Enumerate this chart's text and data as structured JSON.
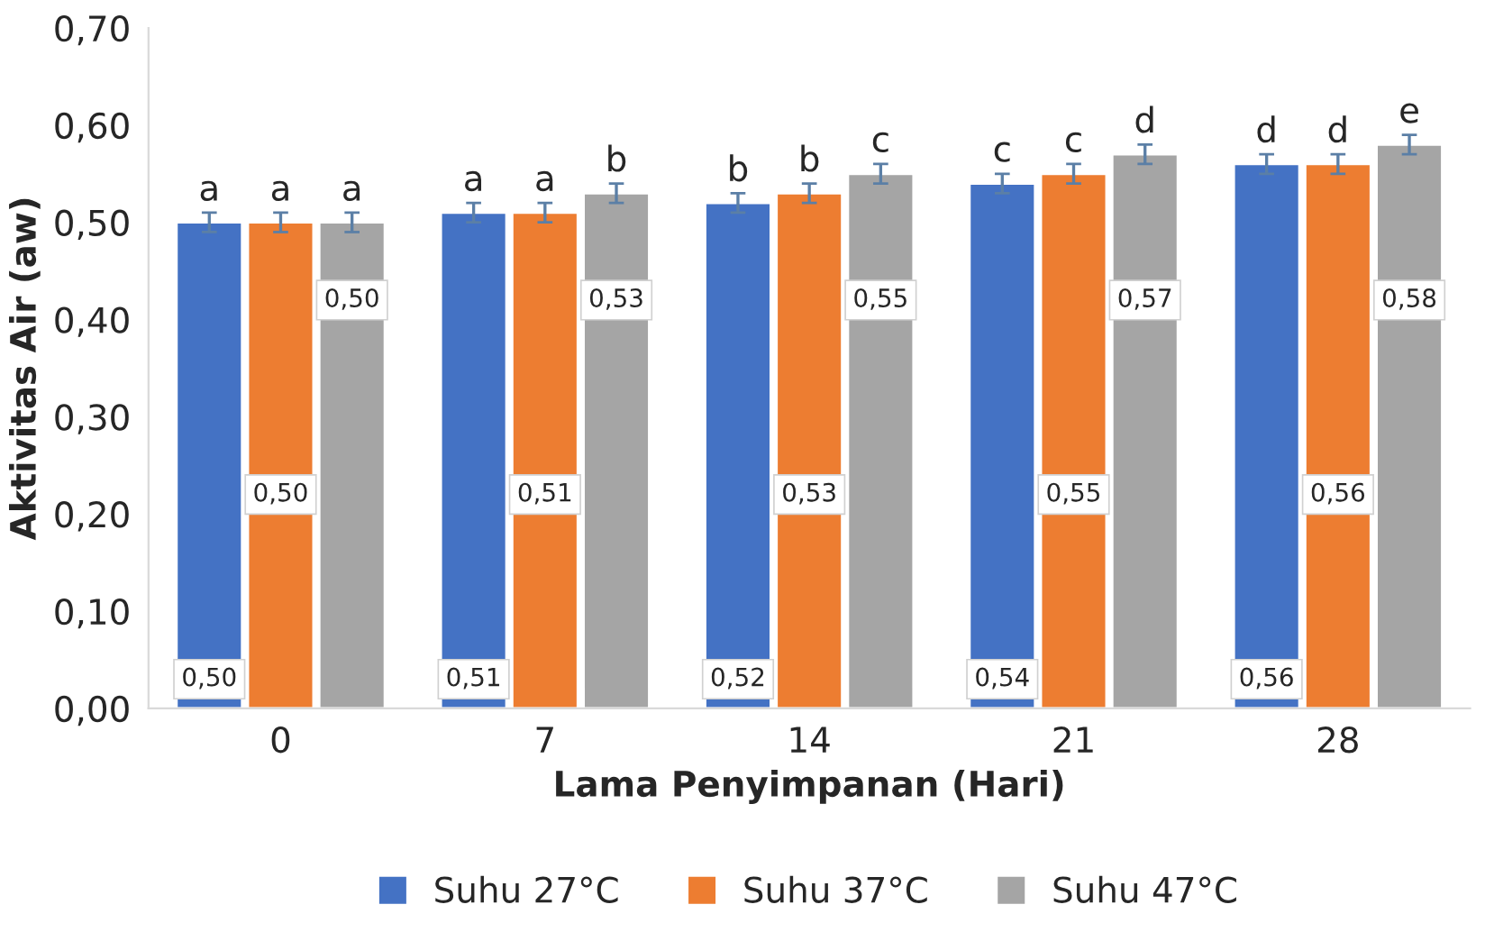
{
  "chart_data": {
    "type": "bar",
    "xlabel": "Lama Penyimpanan (Hari)",
    "ylabel": "Aktivitas Air (aw)",
    "categories": [
      "0",
      "7",
      "14",
      "21",
      "28"
    ],
    "series": [
      {
        "name": "Suhu 27°C",
        "color": "#4472c4",
        "values": [
          0.5,
          0.51,
          0.52,
          0.54,
          0.56
        ],
        "errors": [
          0.01,
          0.01,
          0.01,
          0.01,
          0.01
        ],
        "value_labels": [
          "0,50",
          "0,51",
          "0,52",
          "0,54",
          "0,56"
        ]
      },
      {
        "name": "Suhu 37°C",
        "color": "#ed7d31",
        "values": [
          0.5,
          0.51,
          0.53,
          0.55,
          0.56
        ],
        "errors": [
          0.01,
          0.01,
          0.01,
          0.01,
          0.01
        ],
        "value_labels": [
          "0,50",
          "0,51",
          "0,53",
          "0,55",
          "0,56"
        ]
      },
      {
        "name": "Suhu 47°C",
        "color": "#a5a5a5",
        "values": [
          0.5,
          0.53,
          0.55,
          0.57,
          0.58
        ],
        "errors": [
          0.01,
          0.01,
          0.01,
          0.01,
          0.01
        ],
        "value_labels": [
          "0,50",
          "0,53",
          "0,55",
          "0,57",
          "0,58"
        ]
      }
    ],
    "ylim": [
      0,
      0.7
    ],
    "yticks": [
      {
        "value": 0,
        "label": "0,00"
      },
      {
        "value": 0.1,
        "label": "0,10"
      },
      {
        "value": 0.2,
        "label": "0,20"
      },
      {
        "value": 0.3,
        "label": "0,30"
      },
      {
        "value": 0.4,
        "label": "0,40"
      },
      {
        "value": 0.5,
        "label": "0,50"
      },
      {
        "value": 0.6,
        "label": "0,60"
      },
      {
        "value": 0.7,
        "label": "0,70"
      }
    ],
    "annotations": [
      "a",
      "a",
      "a",
      "a",
      "a",
      "b",
      "b",
      "b",
      "c",
      "c",
      "c",
      "d",
      "d",
      "d",
      "e"
    ],
    "grid": false,
    "legend": "bottom"
  }
}
